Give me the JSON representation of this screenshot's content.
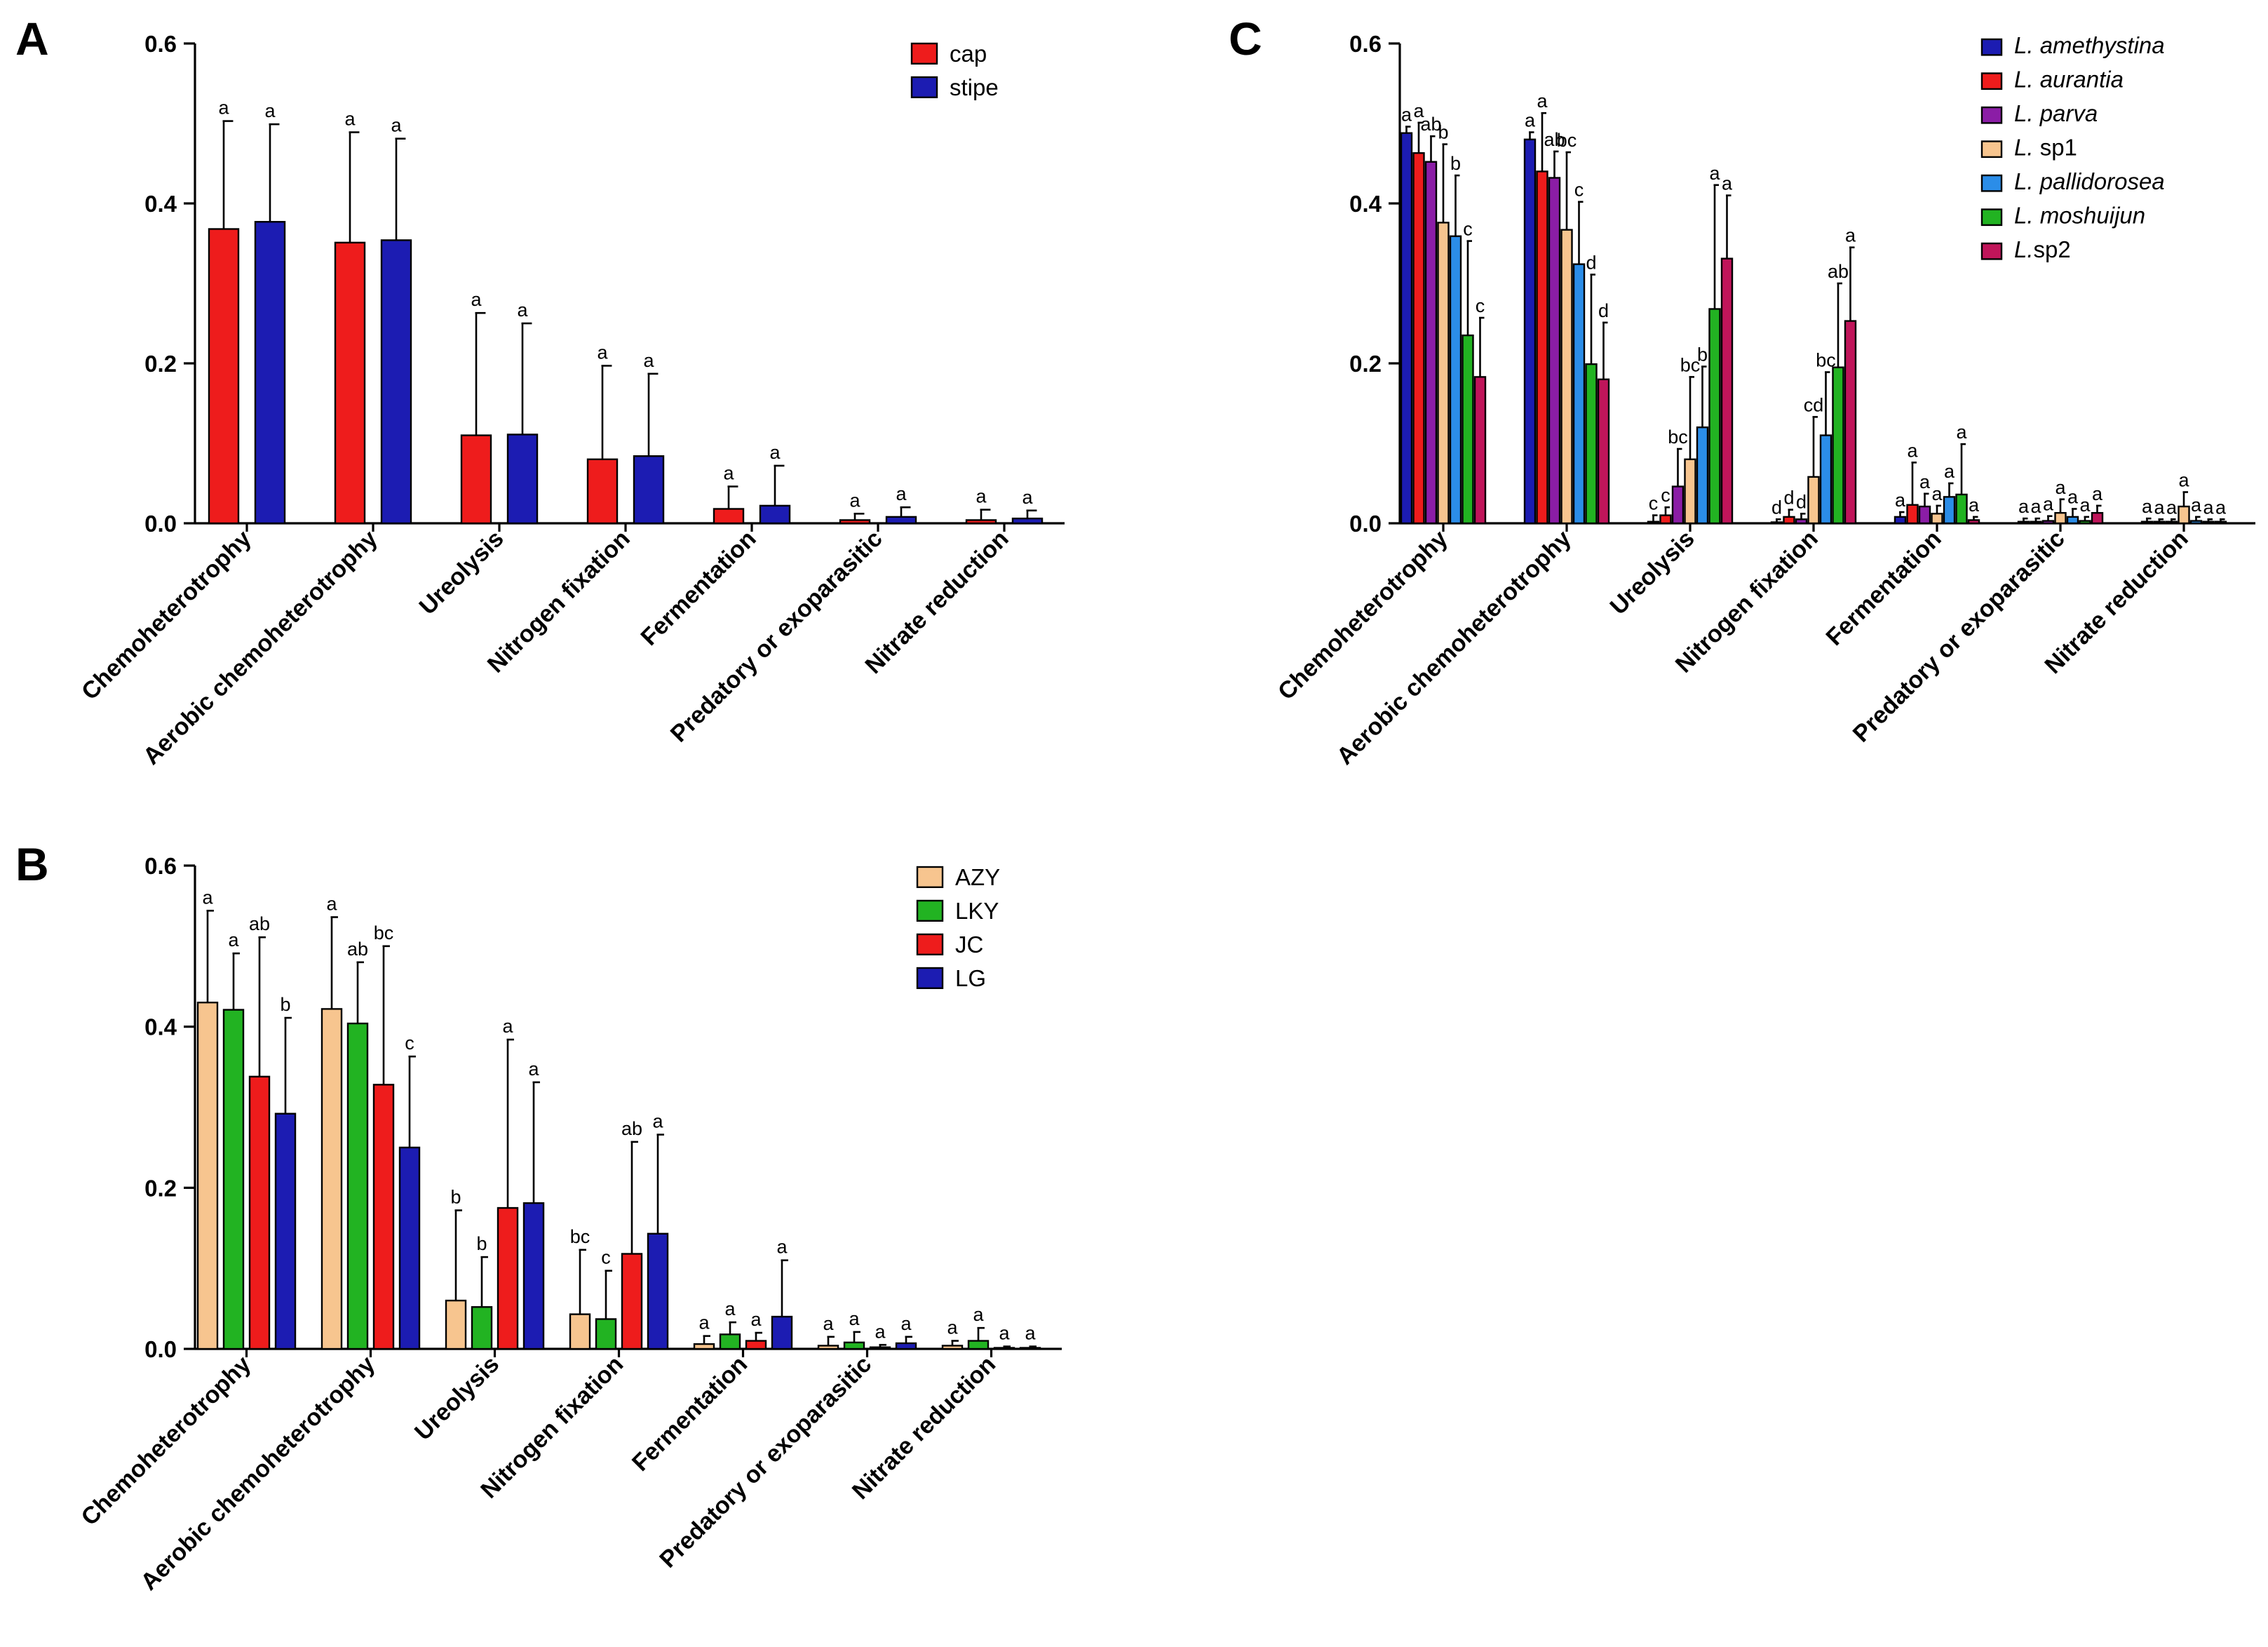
{
  "colors": {
    "red": "#ee1c1c",
    "blue": "#1c1cb2",
    "tan": "#f7c58f",
    "green": "#22b322",
    "purple": "#8b1da6",
    "lightblue": "#2b8de8",
    "crimson": "#c0155a"
  },
  "chart_data": [
    {
      "panel": "A",
      "type": "bar",
      "ylim": [
        0,
        0.6
      ],
      "yticks": [
        "0.0",
        "0.2",
        "0.4",
        "0.6"
      ],
      "categories": [
        "Chemoheterotrophy",
        "Aerobic chemoheterotrophy",
        "Ureolysis",
        "Nitrogen fixation",
        "Fermentation",
        "Predatory or exoparasitic",
        "Nitrate reduction"
      ],
      "legend_position": "top-right",
      "series": [
        {
          "name": "cap",
          "color": "#ee1c1c",
          "values": [
            0.368,
            0.351,
            0.11,
            0.08,
            0.018,
            0.004,
            0.004
          ],
          "errors": [
            0.135,
            0.138,
            0.153,
            0.117,
            0.028,
            0.008,
            0.013
          ],
          "letters": [
            "a",
            "a",
            "a",
            "a",
            "a",
            "a",
            "a"
          ]
        },
        {
          "name": "stipe",
          "color": "#1c1cb2",
          "values": [
            0.377,
            0.354,
            0.111,
            0.084,
            0.022,
            0.008,
            0.006
          ],
          "errors": [
            0.122,
            0.127,
            0.139,
            0.103,
            0.05,
            0.012,
            0.01
          ],
          "letters": [
            "a",
            "a",
            "a",
            "a",
            "a",
            "a",
            "a"
          ]
        }
      ]
    },
    {
      "panel": "B",
      "type": "bar",
      "ylim": [
        0,
        0.6
      ],
      "yticks": [
        "0.0",
        "0.2",
        "0.4",
        "0.6"
      ],
      "categories": [
        "Chemoheterotrophy",
        "Aerobic chemoheterotrophy",
        "Ureolysis",
        "Nitrogen fixation",
        "Fermentation",
        "Predatory or exoparasitic",
        "Nitrate reduction"
      ],
      "legend_position": "top-right",
      "series": [
        {
          "name": "AZY",
          "color": "#f7c58f",
          "values": [
            0.43,
            0.422,
            0.06,
            0.043,
            0.006,
            0.004,
            0.004
          ],
          "errors": [
            0.114,
            0.114,
            0.112,
            0.08,
            0.01,
            0.011,
            0.006
          ],
          "letters": [
            "a",
            "a",
            "b",
            "bc",
            "a",
            "a",
            "a"
          ]
        },
        {
          "name": "LKY",
          "color": "#22b322",
          "values": [
            0.421,
            0.404,
            0.052,
            0.037,
            0.018,
            0.008,
            0.01
          ],
          "errors": [
            0.07,
            0.076,
            0.062,
            0.06,
            0.015,
            0.013,
            0.016
          ],
          "letters": [
            "a",
            "ab",
            "b",
            "c",
            "a",
            "a",
            "a"
          ]
        },
        {
          "name": "JC",
          "color": "#ee1c1c",
          "values": [
            0.338,
            0.328,
            0.175,
            0.118,
            0.01,
            0.002,
            0.001
          ],
          "errors": [
            0.173,
            0.172,
            0.209,
            0.139,
            0.01,
            0.003,
            0.002
          ],
          "letters": [
            "ab",
            "bc",
            "a",
            "ab",
            "a",
            "a",
            "a"
          ]
        },
        {
          "name": "LG",
          "color": "#1c1cb2",
          "values": [
            0.292,
            0.25,
            0.181,
            0.143,
            0.04,
            0.007,
            0.001
          ],
          "errors": [
            0.119,
            0.113,
            0.15,
            0.123,
            0.07,
            0.008,
            0.002
          ],
          "letters": [
            "b",
            "c",
            "a",
            "a",
            "a",
            "a",
            "a"
          ]
        }
      ]
    },
    {
      "panel": "C",
      "type": "bar",
      "ylim": [
        0,
        0.6
      ],
      "yticks": [
        "0.0",
        "0.2",
        "0.4",
        "0.6"
      ],
      "categories": [
        "Chemoheterotrophy",
        "Aerobic chemoheterotrophy",
        "Ureolysis",
        "Nitrogen fixation",
        "Fermentation",
        "Predatory or exoparasitic",
        "Nitrate reduction"
      ],
      "legend_position": "top-right",
      "series": [
        {
          "name": "L. amethystina",
          "italic": "L. amethystina",
          "plain": "",
          "color": "#1c1cb2",
          "values": [
            0.488,
            0.48,
            0.002,
            0.001,
            0.008,
            0.002,
            0.002
          ],
          "errors": [
            0.008,
            0.009,
            0.008,
            0.004,
            0.006,
            0.004,
            0.004
          ],
          "letters": [
            "a",
            "a",
            "c",
            "d",
            "a",
            "a",
            "a"
          ]
        },
        {
          "name": "L. aurantia",
          "italic": "L. aurantia",
          "plain": "",
          "color": "#ee1c1c",
          "values": [
            0.463,
            0.44,
            0.01,
            0.008,
            0.023,
            0.002,
            0.002
          ],
          "errors": [
            0.038,
            0.073,
            0.01,
            0.009,
            0.053,
            0.004,
            0.003
          ],
          "letters": [
            "a",
            "a",
            "c",
            "d",
            "a",
            "a",
            "a"
          ]
        },
        {
          "name": "L. parva",
          "italic": "L. parva",
          "plain": "",
          "color": "#8b1da6",
          "values": [
            0.452,
            0.432,
            0.046,
            0.005,
            0.021,
            0.003,
            0.002
          ],
          "errors": [
            0.032,
            0.033,
            0.047,
            0.007,
            0.016,
            0.006,
            0.003
          ],
          "letters": [
            "ab",
            "ab",
            "bc",
            "d",
            "a",
            "a",
            "a"
          ]
        },
        {
          "name": "L. sp1",
          "italic": "L.",
          "plain": " sp1",
          "color": "#f7c58f",
          "values": [
            0.376,
            0.367,
            0.08,
            0.058,
            0.012,
            0.013,
            0.021
          ],
          "errors": [
            0.098,
            0.097,
            0.103,
            0.075,
            0.01,
            0.017,
            0.018
          ],
          "letters": [
            "b",
            "bc",
            "bc",
            "cd",
            "a",
            "a",
            "a"
          ]
        },
        {
          "name": "L. pallidorosea",
          "italic": "L. pallidorosea",
          "plain": "",
          "color": "#2b8de8",
          "values": [
            0.359,
            0.324,
            0.12,
            0.11,
            0.033,
            0.008,
            0.003
          ],
          "errors": [
            0.076,
            0.078,
            0.076,
            0.079,
            0.017,
            0.01,
            0.005
          ],
          "letters": [
            "b",
            "c",
            "b",
            "bc",
            "a",
            "a",
            "a"
          ]
        },
        {
          "name": "L. moshuijun",
          "italic": "L. moshuijun",
          "plain": "",
          "color": "#22b322",
          "values": [
            0.235,
            0.199,
            0.268,
            0.195,
            0.036,
            0.003,
            0.002
          ],
          "errors": [
            0.118,
            0.112,
            0.155,
            0.105,
            0.063,
            0.005,
            0.003
          ],
          "letters": [
            "c",
            "d",
            "a",
            "ab",
            "a",
            "a",
            "a"
          ]
        },
        {
          "name": "L.sp2",
          "italic": "L.",
          "plain": "sp2",
          "color": "#c0155a",
          "values": [
            0.183,
            0.18,
            0.331,
            0.253,
            0.004,
            0.013,
            0.002
          ],
          "errors": [
            0.074,
            0.071,
            0.079,
            0.092,
            0.004,
            0.009,
            0.003
          ],
          "letters": [
            "c",
            "d",
            "a",
            "a",
            "a",
            "a",
            "a"
          ]
        }
      ]
    }
  ]
}
